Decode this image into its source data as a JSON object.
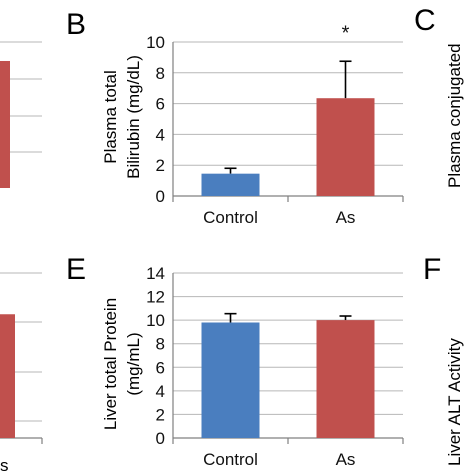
{
  "colors": {
    "control": "#4a7ebf",
    "as": "#c0504d",
    "grid": "#b7b7b7",
    "axis": "#808080",
    "text": "#111111"
  },
  "panels": {
    "B": {
      "letter": "B",
      "ylabel_line1": "Plasma total",
      "ylabel_line2": "Bilirubin (mg/dL)",
      "significance": "*"
    },
    "C": {
      "letter": "C",
      "ylabel_fragment": "Plasma conjugated"
    },
    "E": {
      "letter": "E",
      "ylabel_line1": "Liver total Protein",
      "ylabel_line2": "(mg/mL)"
    },
    "F": {
      "letter": "F",
      "ylabel_fragment": "Liver ALT Activity"
    },
    "left_bottom": {
      "tick_fragment": "s"
    }
  },
  "chart_data": [
    {
      "panel": "B",
      "type": "bar",
      "categories": [
        "Control",
        "As"
      ],
      "values": [
        1.45,
        6.35
      ],
      "errors": [
        0.35,
        2.4
      ],
      "ylabel": "Plasma total Bilirubin (mg/dL)",
      "ylim": [
        0,
        10
      ],
      "yticks": [
        0,
        2,
        4,
        6,
        8,
        10
      ],
      "grid": true,
      "annotations": [
        "*"
      ]
    },
    {
      "panel": "E",
      "type": "bar",
      "categories": [
        "Control",
        "As"
      ],
      "values": [
        9.8,
        10.0
      ],
      "errors": [
        0.75,
        0.35
      ],
      "ylabel": "Liver total Protein (mg/mL)",
      "ylim": [
        0,
        14
      ],
      "yticks": [
        0,
        2,
        4,
        6,
        8,
        10,
        12,
        14
      ],
      "grid": true
    },
    {
      "panel": "A-partial",
      "type": "bar",
      "visible_fraction": 0.87,
      "grid": true
    },
    {
      "panel": "D-partial",
      "type": "bar",
      "visible_fraction": 0.75,
      "grid": true
    }
  ]
}
